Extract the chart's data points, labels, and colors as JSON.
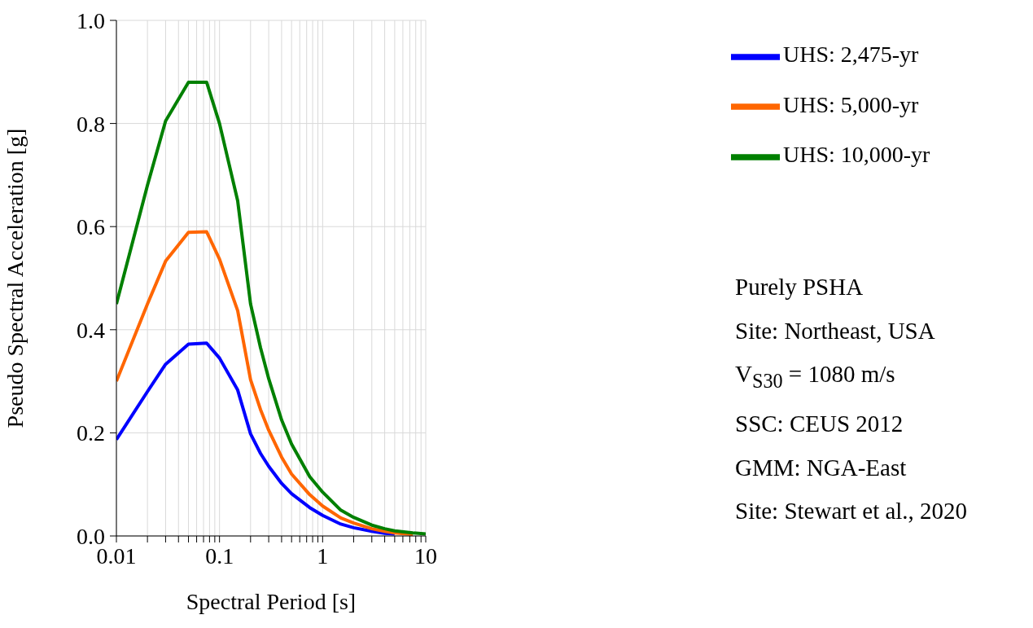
{
  "chart_data": {
    "type": "line",
    "xlabel": "Spectral Period [s]",
    "ylabel": "Pseudo Spectral Acceleration [g]",
    "x": [
      0.01,
      0.02,
      0.03,
      0.05,
      0.075,
      0.1,
      0.15,
      0.2,
      0.25,
      0.3,
      0.4,
      0.5,
      0.75,
      1,
      1.5,
      2,
      3,
      4,
      5,
      7.5,
      10
    ],
    "series": [
      {
        "name": "UHS: 2,475-yr",
        "color": "#0000ff",
        "values": [
          0.187,
          0.28,
          0.333,
          0.372,
          0.374,
          0.345,
          0.283,
          0.198,
          0.16,
          0.135,
          0.102,
          0.082,
          0.055,
          0.04,
          0.023,
          0.016,
          0.009,
          0.005,
          0.004,
          null,
          null
        ]
      },
      {
        "name": "UHS: 5,000-yr",
        "color": "#ff6600",
        "values": [
          0.3,
          0.45,
          0.533,
          0.589,
          0.59,
          0.537,
          0.437,
          0.303,
          0.245,
          0.205,
          0.153,
          0.12,
          0.08,
          0.058,
          0.035,
          0.025,
          0.014,
          0.009,
          0.006,
          0.003,
          null
        ]
      },
      {
        "name": "UHS: 10,000-yr",
        "color": "#008000",
        "values": [
          0.45,
          0.68,
          0.805,
          0.88,
          0.88,
          0.8,
          0.65,
          0.45,
          0.365,
          0.305,
          0.225,
          0.178,
          0.115,
          0.085,
          0.05,
          0.036,
          0.021,
          0.014,
          0.01,
          0.006,
          0.004
        ]
      }
    ],
    "log": "x",
    "xlim": [
      0.01,
      10
    ],
    "xticks": [
      0.01,
      {
        "value": 0.02,
        "label": null
      },
      {
        "value": 0.03,
        "label": null
      },
      {
        "value": 0.04,
        "label": null
      },
      {
        "value": 0.05,
        "label": null
      },
      {
        "value": 0.06,
        "label": null
      },
      {
        "value": 0.07,
        "label": null
      },
      {
        "value": 0.08,
        "label": null
      },
      {
        "value": 0.09,
        "label": null
      },
      0.1,
      {
        "value": 0.2,
        "label": null
      },
      {
        "value": 0.3,
        "label": null
      },
      {
        "value": 0.4,
        "label": null
      },
      {
        "value": 0.5,
        "label": null
      },
      {
        "value": 0.6,
        "label": null
      },
      {
        "value": 0.7,
        "label": null
      },
      {
        "value": 0.8,
        "label": null
      },
      {
        "value": 0.9,
        "label": null
      },
      1,
      {
        "value": 2,
        "label": null
      },
      {
        "value": 3,
        "label": null
      },
      {
        "value": 4,
        "label": null
      },
      {
        "value": 5,
        "label": null
      },
      {
        "value": 6,
        "label": null
      },
      {
        "value": 7,
        "label": null
      },
      {
        "value": 8,
        "label": null
      },
      {
        "value": 9,
        "label": null
      },
      10
    ],
    "ylim": [
      0,
      1
    ],
    "yticks": [
      {
        "value": 0,
        "label": "0.0"
      },
      0.2,
      0.4,
      0.6,
      0.8,
      {
        "value": 1,
        "label": "1.0"
      }
    ],
    "grid": true,
    "legend": "right",
    "marker": "none",
    "line_style": "solid",
    "annotations": [
      "Purely PSHA",
      "Site: Northeast, USA",
      "V$_{S30}$ = 1080 m/s",
      "SSC: CEUS 2012",
      "GMM: NGA-East",
      "Site: Stewart et al., 2020"
    ]
  }
}
